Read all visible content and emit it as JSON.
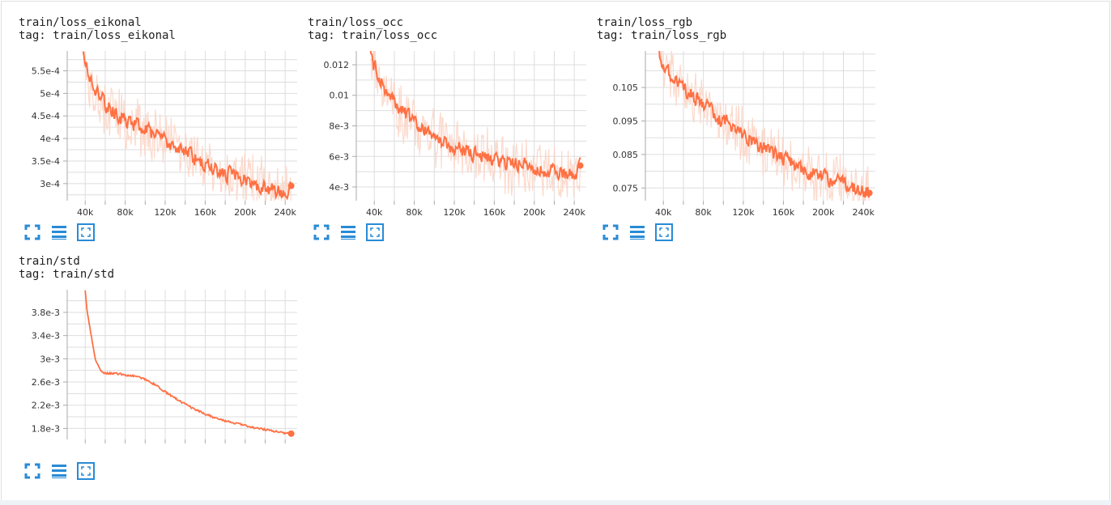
{
  "app": {
    "accent_color": "#ff7043",
    "accent_light": "#fcd5c6",
    "icon_color": "#288bd6"
  },
  "cards": [
    {
      "title": "train/loss_eikonal",
      "tag": "tag: train/loss_eikonal",
      "icons": [
        "expand-icon",
        "toggle-log-scale-icon",
        "fit-domain-icon"
      ]
    },
    {
      "title": "train/loss_occ",
      "tag": "tag: train/loss_occ",
      "icons": [
        "expand-icon",
        "toggle-log-scale-icon",
        "fit-domain-icon"
      ]
    },
    {
      "title": "train/loss_rgb",
      "tag": "tag: train/loss_rgb",
      "icons": [
        "expand-icon",
        "toggle-log-scale-icon",
        "fit-domain-icon"
      ]
    },
    {
      "title": "train/std",
      "tag": "tag: train/std",
      "icons": [
        "expand-icon",
        "toggle-log-scale-icon",
        "fit-domain-icon"
      ]
    }
  ],
  "chart_data": [
    {
      "type": "line",
      "title": "train/loss_eikonal",
      "xlabel": "",
      "ylabel": "",
      "xlim": [
        22000,
        252000
      ],
      "ylim": [
        0.000262,
        0.000594
      ],
      "x_ticks": [
        40000,
        80000,
        120000,
        160000,
        200000,
        240000
      ],
      "x_tick_labels": [
        "40k",
        "80k",
        "120k",
        "160k",
        "200k",
        "240k"
      ],
      "y_ticks": [
        0.0003,
        0.00035,
        0.0004,
        0.00045,
        0.0005,
        0.00055
      ],
      "y_tick_labels": [
        "3e-4",
        "3.5e-4",
        "4e-4",
        "4.5e-4",
        "5e-4",
        "5.5e-4"
      ],
      "grid": true,
      "series": [
        {
          "smoothed": true,
          "x": [
            38000,
            42000,
            50000,
            60000,
            70000,
            80000,
            90000,
            100000,
            110000,
            120000,
            130000,
            140000,
            150000,
            160000,
            170000,
            180000,
            190000,
            200000,
            210000,
            220000,
            230000,
            240000,
            246000
          ],
          "y": [
            0.000595,
            0.000545,
            0.00051,
            0.000475,
            0.000455,
            0.00044,
            0.00043,
            0.000418,
            0.000405,
            0.000395,
            0.00038,
            0.00037,
            0.000355,
            0.000343,
            0.00033,
            0.000322,
            0.000315,
            0.000307,
            0.000298,
            0.00029,
            0.000283,
            0.000278,
            0.000295
          ],
          "last": [
            246000,
            0.000295
          ]
        }
      ]
    },
    {
      "type": "line",
      "title": "train/loss_occ",
      "xlabel": "",
      "ylabel": "",
      "xlim": [
        22000,
        252000
      ],
      "ylim": [
        0.0031,
        0.0129
      ],
      "x_ticks": [
        40000,
        80000,
        120000,
        160000,
        200000,
        240000
      ],
      "x_tick_labels": [
        "40k",
        "80k",
        "120k",
        "160k",
        "200k",
        "240k"
      ],
      "y_ticks": [
        0.004,
        0.006,
        0.008,
        0.01,
        0.012
      ],
      "y_tick_labels": [
        "4e-3",
        "6e-3",
        "8e-3",
        "0.01",
        "0.012"
      ],
      "grid": true,
      "series": [
        {
          "smoothed": true,
          "x": [
            36000,
            40000,
            50000,
            60000,
            70000,
            80000,
            90000,
            100000,
            110000,
            120000,
            130000,
            140000,
            150000,
            160000,
            170000,
            180000,
            190000,
            200000,
            210000,
            220000,
            230000,
            240000,
            246000
          ],
          "y": [
            0.0128,
            0.0118,
            0.0105,
            0.0095,
            0.0088,
            0.0081,
            0.0076,
            0.0072,
            0.0069,
            0.0066,
            0.0064,
            0.0062,
            0.006,
            0.0058,
            0.0056,
            0.0055,
            0.0054,
            0.0052,
            0.0051,
            0.005,
            0.0049,
            0.0048,
            0.0054
          ],
          "last": [
            246000,
            0.0054
          ]
        }
      ]
    },
    {
      "type": "line",
      "title": "train/loss_rgb",
      "xlabel": "",
      "ylabel": "",
      "xlim": [
        22000,
        252000
      ],
      "ylim": [
        0.0712,
        0.1159
      ],
      "x_ticks": [
        40000,
        80000,
        120000,
        160000,
        200000,
        240000
      ],
      "x_tick_labels": [
        "40k",
        "80k",
        "120k",
        "160k",
        "200k",
        "240k"
      ],
      "y_ticks": [
        0.075,
        0.085,
        0.095,
        0.105
      ],
      "y_tick_labels": [
        "0.075",
        "0.085",
        "0.095",
        "0.105"
      ],
      "grid": true,
      "series": [
        {
          "smoothed": true,
          "x": [
            35000,
            40000,
            50000,
            60000,
            70000,
            80000,
            90000,
            100000,
            110000,
            120000,
            130000,
            140000,
            150000,
            160000,
            170000,
            180000,
            190000,
            200000,
            210000,
            220000,
            230000,
            240000,
            246000
          ],
          "y": [
            0.1155,
            0.111,
            0.108,
            0.105,
            0.102,
            0.0995,
            0.097,
            0.095,
            0.0925,
            0.0905,
            0.0885,
            0.0865,
            0.0848,
            0.0835,
            0.082,
            0.0805,
            0.079,
            0.078,
            0.077,
            0.076,
            0.075,
            0.0742,
            0.0735
          ],
          "last": [
            246000,
            0.0735
          ]
        }
      ]
    },
    {
      "type": "line",
      "title": "train/std",
      "xlabel": "",
      "ylabel": "",
      "xlim": [
        22000,
        252000
      ],
      "ylim": [
        0.00161,
        0.00419
      ],
      "x_ticks": [
        40000,
        80000,
        120000,
        160000,
        200000,
        240000
      ],
      "x_tick_labels": [
        "",
        "",
        "",
        "",
        "",
        ""
      ],
      "y_ticks": [
        0.0018,
        0.0022,
        0.0026,
        0.003,
        0.0034,
        0.0038
      ],
      "y_tick_labels": [
        "1.8e-3",
        "2.2e-3",
        "2.6e-3",
        "3e-3",
        "3.4e-3",
        "3.8e-3"
      ],
      "grid": true,
      "series": [
        {
          "smoothed": false,
          "x": [
            40000,
            42000,
            45000,
            48000,
            50000,
            55000,
            60000,
            70000,
            80000,
            90000,
            100000,
            110000,
            120000,
            130000,
            140000,
            150000,
            160000,
            170000,
            180000,
            190000,
            200000,
            210000,
            220000,
            230000,
            240000,
            246000
          ],
          "y": [
            0.00418,
            0.0038,
            0.0035,
            0.0032,
            0.003,
            0.0028,
            0.00275,
            0.00275,
            0.00272,
            0.0027,
            0.00265,
            0.00255,
            0.00243,
            0.00232,
            0.00222,
            0.00212,
            0.00205,
            0.00198,
            0.00193,
            0.00189,
            0.00185,
            0.00181,
            0.00178,
            0.00175,
            0.00172,
            0.00171
          ],
          "last": [
            246000,
            0.00171
          ]
        }
      ]
    }
  ]
}
